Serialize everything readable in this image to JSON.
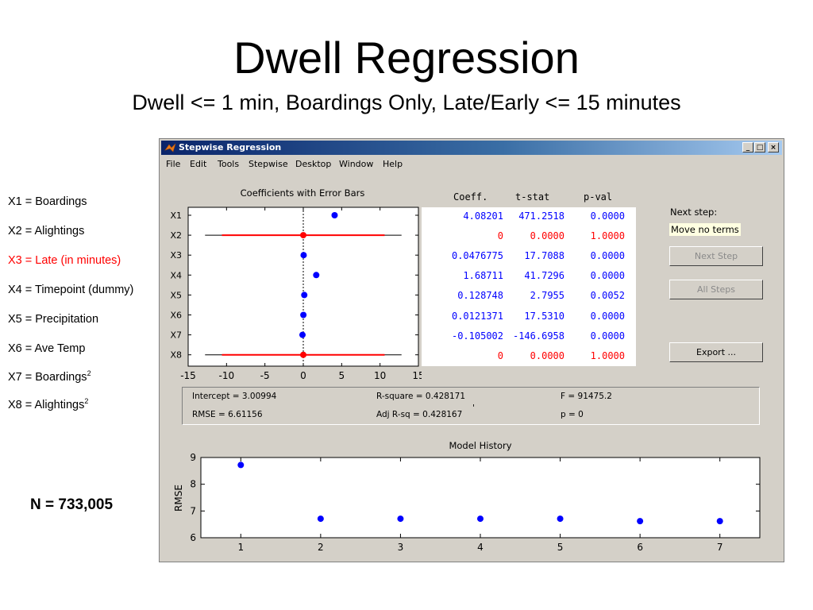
{
  "slide": {
    "title": "Dwell Regression",
    "subtitle": "Dwell <= 1 min, Boardings Only, Late/Early <= 15 minutes",
    "n_label": "N = 733,005"
  },
  "legend": [
    {
      "text": "X1 = Boardings",
      "color": "#000000"
    },
    {
      "text": "X2 = Alightings",
      "color": "#000000"
    },
    {
      "text": "X3 = Late (in minutes)",
      "color": "#ff0000"
    },
    {
      "text": "X4 = Timepoint (dummy)",
      "color": "#000000"
    },
    {
      "text": "X5 = Precipitation",
      "color": "#000000"
    },
    {
      "text": "X6 = Ave Temp",
      "color": "#000000"
    },
    {
      "text": "X7 = Boardings",
      "sup": "2",
      "color": "#000000"
    },
    {
      "text": "X8 = Alightings",
      "sup": "2",
      "color": "#000000"
    }
  ],
  "window": {
    "title": "Stepwise Regression",
    "controls": {
      "minimize": "_",
      "maximize": "□",
      "close": "×"
    },
    "menu": [
      "File",
      "Edit",
      "Tools",
      "Stepwise",
      "Desktop",
      "Window",
      "Help"
    ]
  },
  "stats_table": {
    "headers": [
      "Coeff.",
      "t-stat",
      "p-val"
    ],
    "rows": [
      {
        "coeff": "4.08201",
        "tstat": "471.2518",
        "pval": "0.0000",
        "in_model": true
      },
      {
        "coeff": "0",
        "tstat": "0.0000",
        "pval": "1.0000",
        "in_model": false
      },
      {
        "coeff": "0.0476775",
        "tstat": "17.7088",
        "pval": "0.0000",
        "in_model": true
      },
      {
        "coeff": "1.68711",
        "tstat": "41.7296",
        "pval": "0.0000",
        "in_model": true
      },
      {
        "coeff": "0.128748",
        "tstat": "2.7955",
        "pval": "0.0052",
        "in_model": true
      },
      {
        "coeff": "0.0121371",
        "tstat": "17.5310",
        "pval": "0.0000",
        "in_model": true
      },
      {
        "coeff": "-0.105002",
        "tstat": "-146.6958",
        "pval": "0.0000",
        "in_model": true
      },
      {
        "coeff": "0",
        "tstat": "0.0000",
        "pval": "1.0000",
        "in_model": false
      }
    ]
  },
  "side_panel": {
    "next_step_label": "Next step:",
    "next_step_value": "Move no terms",
    "next_step_button": "Next Step",
    "all_steps_button": "All Steps",
    "export_button": "Export ..."
  },
  "results": {
    "intercept": "Intercept = 3.00994",
    "rsquare": "R-square = 0.428171",
    "f": "F = 91475.2",
    "rmse": "RMSE = 6.61156",
    "adj_rsq": "Adj R-sq = 0.428167",
    "p": "p = 0",
    "tick_mark": "'"
  },
  "colors": {
    "in_model": "#0000ff",
    "out_model": "#ff0000",
    "titlebar": "#0a246a"
  },
  "chart_data": [
    {
      "type": "scatter",
      "title": "Coefficients with Error Bars",
      "categories": [
        "X1",
        "X2",
        "X3",
        "X4",
        "X5",
        "X6",
        "X7",
        "X8"
      ],
      "xlim": [
        -15,
        15
      ],
      "xticks": [
        "-15",
        "-10",
        "-5",
        "0",
        "5",
        "10",
        "15"
      ],
      "values": [
        4.08201,
        0,
        0.0476775,
        1.68711,
        0.128748,
        0.0121371,
        -0.105002,
        0
      ],
      "red_intervals": [
        null,
        [
          -10.6,
          10.6
        ],
        null,
        null,
        null,
        null,
        null,
        [
          -10.6,
          10.6
        ]
      ],
      "black_intervals": [
        null,
        [
          -12.8,
          12.8
        ],
        null,
        null,
        null,
        null,
        null,
        [
          -12.8,
          12.8
        ]
      ],
      "in_model": [
        true,
        false,
        true,
        true,
        true,
        true,
        true,
        false
      ]
    },
    {
      "type": "scatter",
      "title": "Model History",
      "ylabel": "RMSE",
      "x": [
        1,
        2,
        3,
        4,
        5,
        6,
        7
      ],
      "y": [
        8.72,
        6.71,
        6.71,
        6.71,
        6.71,
        6.62,
        6.62
      ],
      "xlim": [
        0.5,
        7.5
      ],
      "ylim": [
        6,
        9
      ],
      "xticks": [
        "1",
        "2",
        "3",
        "4",
        "5",
        "6",
        "7"
      ],
      "yticks": [
        "6",
        "7",
        "8",
        "9"
      ]
    }
  ]
}
